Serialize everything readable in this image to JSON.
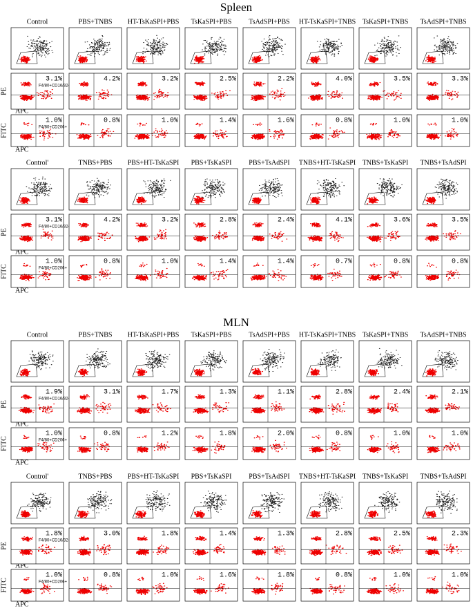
{
  "row_labels": {
    "pe": "PE",
    "fitc": "FITC",
    "apc": "APC"
  },
  "gates": {
    "pe": "F4/80+CD16/32+",
    "fitc": "F4/80+CD206+"
  },
  "sections": [
    {
      "title": "Spleen",
      "blocks": [
        {
          "columns": [
            "Control",
            "PBS+TNBS",
            "HT-TsKaSPI+PBS",
            "TsKaSPI+PBS",
            "TsAdSPI+PBS",
            "HT-TsKaSPI+TNBS",
            "TsKaSPI+TNBS",
            "TsAdSPI+TNBS"
          ],
          "pe": [
            "3.1%",
            "4.2%",
            "3.2%",
            "2.5%",
            "2.2%",
            "4.0%",
            "3.5%",
            "3.3%"
          ],
          "fitc": [
            "1.0%",
            "0.8%",
            "1.0%",
            "1.4%",
            "1.6%",
            "0.8%",
            "1.0%",
            "1.0%"
          ]
        },
        {
          "columns": [
            "Control'",
            "TNBS+PBS",
            "PBS+HT-TsKaSPI",
            "PBS+TsKaSPI",
            "PBS+TsAdSPI",
            "TNBS+HT-TsKaSPI",
            "TNBS+TsKaSPI",
            "TNBS+TsAdSPI"
          ],
          "pe": [
            "3.1%",
            "4.2%",
            "3.2%",
            "2.8%",
            "2.4%",
            "4.1%",
            "3.6%",
            "3.5%"
          ],
          "fitc": [
            "1.0%",
            "0.8%",
            "1.0%",
            "1.4%",
            "1.4%",
            "0.7%",
            "0.8%",
            "0.8%"
          ]
        }
      ]
    },
    {
      "title": "MLN",
      "blocks": [
        {
          "columns": [
            "Control",
            "PBS+TNBS",
            "HT-TsKaSPI+PBS",
            "TsKaSPI+PBS",
            "TsAdSPI+PBS",
            "HT-TsKaSPI+TNBS",
            "TsKaSPI+TNBS",
            "TsAdSPI+TNBS"
          ],
          "pe": [
            "1.9%",
            "3.1%",
            "1.7%",
            "1.3%",
            "1.1%",
            "2.8%",
            "2.4%",
            "2.1%"
          ],
          "fitc": [
            "1.0%",
            "0.8%",
            "1.2%",
            "1.8%",
            "2.0%",
            "0.8%",
            "1.0%",
            "1.0%"
          ]
        },
        {
          "columns": [
            "Control'",
            "TNBS+PBS",
            "PBS+HT-TsKaSPI",
            "PBS+TsKaSPI",
            "PBS+TsAdSPI",
            "TNBS+HT-TsKaSPI",
            "TNBS+TsKaSPI",
            "TNBS+TsAdSPI"
          ],
          "pe": [
            "1.8%",
            "3.0%",
            "1.8%",
            "1.4%",
            "1.3%",
            "2.8%",
            "2.5%",
            "2.3%"
          ],
          "fitc": [
            "1.0%",
            "0.8%",
            "1.0%",
            "1.6%",
            "1.8%",
            "0.8%",
            "1.0%",
            "1.0%"
          ]
        }
      ]
    }
  ]
}
